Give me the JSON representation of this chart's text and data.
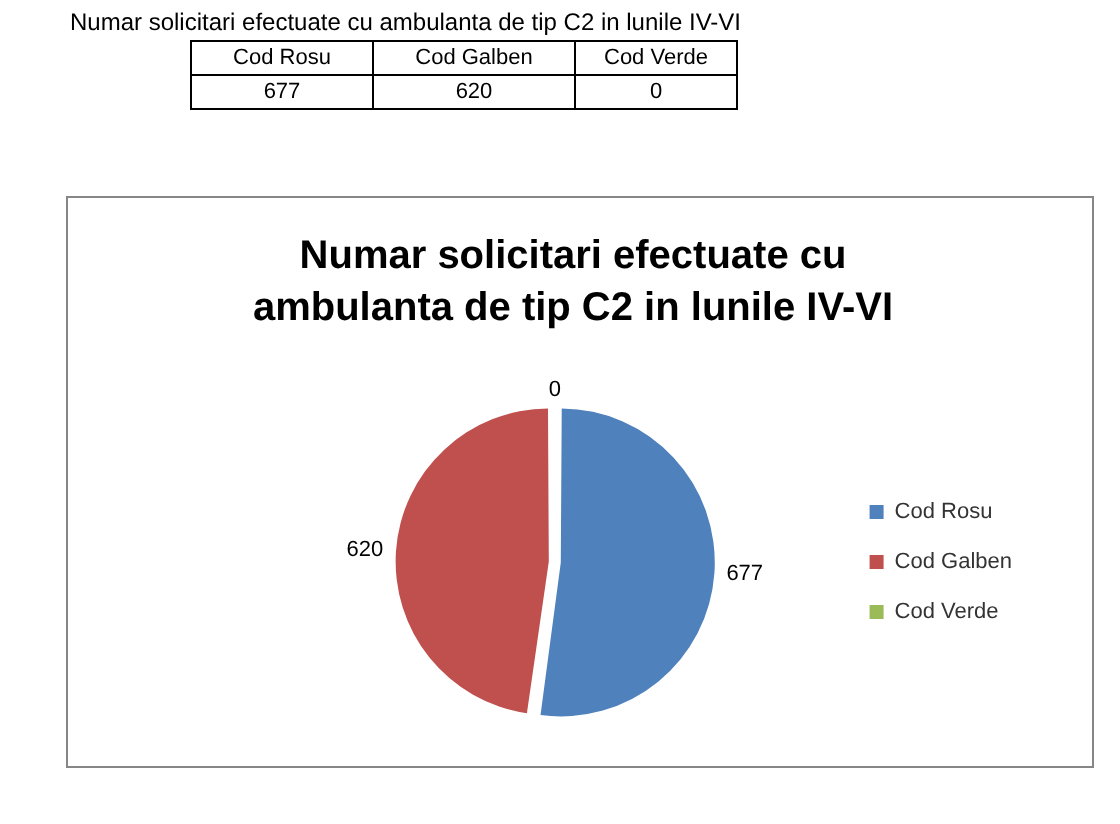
{
  "chart_data": {
    "type": "pie",
    "title": "Numar solicitari efectuate cu ambulanta de tip C2 in lunile IV-VI",
    "annotations": [
      "Numar solicitari efectuate cu ambulanta de tip C2 in lunile IV-VI"
    ],
    "categories": [
      "Cod Rosu",
      "Cod Galben",
      "Cod Verde"
    ],
    "values": [
      677,
      620,
      0
    ],
    "colors": [
      "#4f81bd",
      "#c0504d",
      "#9bbb59"
    ],
    "value_labels": [
      "677",
      "620",
      "0"
    ],
    "legend": "right"
  }
}
